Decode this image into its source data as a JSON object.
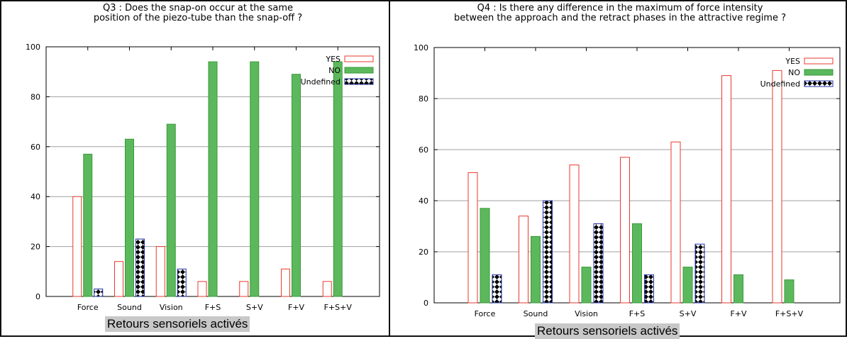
{
  "colors": {
    "yes": "#e8382e",
    "no": "#3a9a3a",
    "no_fill": "#5cb85c",
    "undefined": "#2233aa"
  },
  "chart_data": [
    {
      "type": "bar",
      "title": [
        "Q3 : Does the snap-on occur at the same",
        "position of the piezo-tube than the snap-off ?"
      ],
      "xlabel": "Retours sensoriels activés",
      "ylabel": "",
      "ylim": [
        0,
        100
      ],
      "yticks": [
        0,
        20,
        40,
        60,
        80,
        100
      ],
      "grid": true,
      "legend": "top-right",
      "categories": [
        "Force",
        "Sound",
        "Vision",
        "F+S",
        "S+V",
        "F+V",
        "F+S+V"
      ],
      "series": [
        {
          "name": "YES",
          "values": [
            40,
            14,
            20,
            6,
            6,
            11,
            6
          ]
        },
        {
          "name": "NO",
          "values": [
            57,
            63,
            69,
            94,
            94,
            89,
            94
          ]
        },
        {
          "name": "Undefined",
          "values": [
            3,
            23,
            11,
            0,
            0,
            0,
            0
          ]
        }
      ]
    },
    {
      "type": "bar",
      "title": [
        "Q4 : Is there any difference in the maximum of force intensity",
        "between the approach and the retract phases in the attractive regime ?"
      ],
      "xlabel": "Retours sensoriels activés",
      "ylabel": "",
      "ylim": [
        0,
        100
      ],
      "yticks": [
        0,
        20,
        40,
        60,
        80,
        100
      ],
      "grid": true,
      "legend": "top-right",
      "categories": [
        "Force",
        "Sound",
        "Vision",
        "F+S",
        "S+V",
        "F+V",
        "F+S+V"
      ],
      "series": [
        {
          "name": "YES",
          "values": [
            51,
            34,
            54,
            57,
            63,
            89,
            91
          ]
        },
        {
          "name": "NO",
          "values": [
            37,
            26,
            14,
            31,
            14,
            11,
            9
          ]
        },
        {
          "name": "Undefined",
          "values": [
            11,
            40,
            31,
            11,
            23,
            0,
            0
          ]
        }
      ]
    }
  ]
}
